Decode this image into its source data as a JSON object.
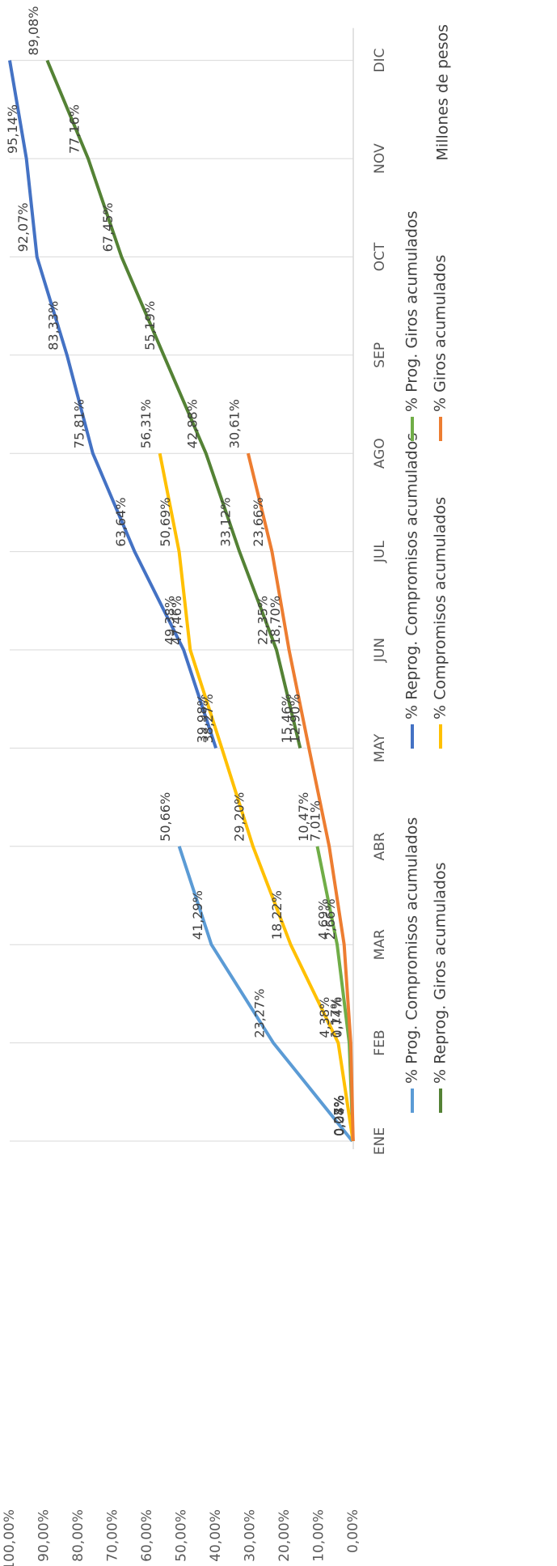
{
  "chart_data": {
    "type": "line",
    "categories": [
      "ENE",
      "FEB",
      "MAR",
      "ABR",
      "MAY",
      "JUN",
      "JUL",
      "AGO",
      "SEP",
      "OCT",
      "NOV",
      "DIC"
    ],
    "series": [
      {
        "name": "% Prog. Compromisos acumulados",
        "color": "#5b9bd5",
        "values": [
          0.27,
          23.27,
          41.29,
          50.66,
          null,
          null,
          null,
          null,
          null,
          null,
          null,
          null
        ],
        "value_labels": [
          "0,27%",
          "23,27%",
          "41,29%",
          "50,66%",
          null,
          null,
          null,
          null,
          null,
          null,
          null,
          null
        ]
      },
      {
        "name": "% Reprog. Compromisos acumulados",
        "color": "#4472c4",
        "values": [
          null,
          null,
          null,
          null,
          39.98,
          49.38,
          63.64,
          75.81,
          83.33,
          92.07,
          95.14,
          100
        ],
        "value_labels": [
          null,
          null,
          null,
          null,
          "39,98%",
          "49,38%",
          "63,64%",
          "75,81%",
          "83,33%",
          "92,07%",
          "95,14%",
          null
        ]
      },
      {
        "name": "% Prog. Giros acumulados",
        "color": "#70ad47",
        "values": [
          0.07,
          1.17,
          4.69,
          10.47,
          null,
          null,
          null,
          null,
          null,
          null,
          null,
          null
        ],
        "value_labels": [
          "0,07%",
          "1,17%",
          "4,69%",
          "10,47%",
          null,
          null,
          null,
          null,
          null,
          null,
          null,
          null
        ]
      },
      {
        "name": "% Reprog. Giros acumulados",
        "color": "#548235",
        "values": [
          null,
          null,
          null,
          null,
          15.46,
          22.35,
          33.12,
          42.88,
          55.19,
          67.45,
          77.16,
          89.08
        ],
        "value_labels": [
          null,
          null,
          null,
          null,
          "15,46%",
          "22,35%",
          "33,12%",
          "42,88%",
          "55,19%",
          "67,45%",
          "77,16%",
          "89,08%"
        ]
      },
      {
        "name": "% Compromisos acumulados",
        "color": "#ffc000",
        "values": [
          0.08,
          4.38,
          18.22,
          29.2,
          38.27,
          47.46,
          50.69,
          56.31,
          null,
          null,
          null,
          null
        ],
        "value_labels": [
          "0,08%",
          "4,38%",
          "18,22%",
          "29,20%",
          "38,27%",
          "47,46%",
          "50,69%",
          "56,31%",
          null,
          null,
          null,
          null
        ]
      },
      {
        "name": "% Giros acumulados",
        "color": "#ed7d31",
        "values": [
          0.04,
          0.74,
          2.66,
          7.01,
          12.9,
          18.7,
          23.66,
          30.61,
          null,
          null,
          null,
          null
        ],
        "value_labels": [
          "0,04%",
          "0,74%",
          "2,66%",
          "7,01%",
          "12,90%",
          "18,70%",
          "23,66%",
          "30,61%",
          null,
          null,
          null,
          null
        ]
      }
    ],
    "ylim": [
      0,
      100
    ],
    "yticks": [
      {
        "value": 0,
        "label": "0,00%"
      },
      {
        "value": 10,
        "label": "10,00%"
      },
      {
        "value": 20,
        "label": "20,00%"
      },
      {
        "value": 30,
        "label": "30,00%"
      },
      {
        "value": 40,
        "label": "40,00%"
      },
      {
        "value": 50,
        "label": "50,00%"
      },
      {
        "value": 60,
        "label": "60,00%"
      },
      {
        "value": 70,
        "label": "70,00%"
      },
      {
        "value": 80,
        "label": "80,00%"
      },
      {
        "value": 90,
        "label": "90,00%"
      },
      {
        "value": 100,
        "label": "100,00%"
      }
    ],
    "grid": false,
    "note": "Millones de pesos"
  }
}
